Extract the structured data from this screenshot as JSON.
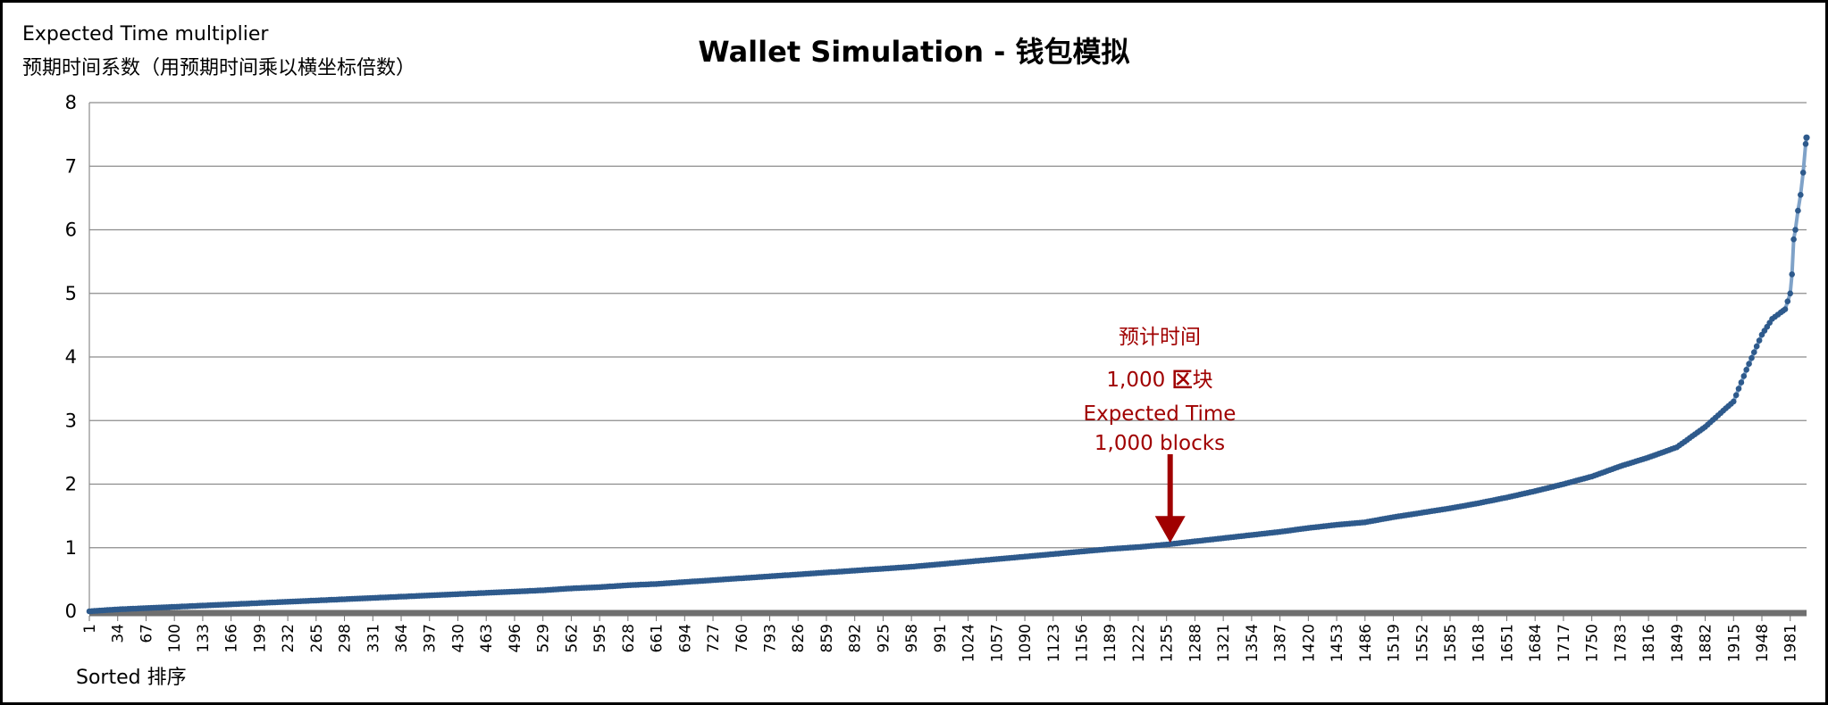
{
  "chart_data": {
    "type": "line",
    "title": "Wallet Simulation - 钱包模拟",
    "ylabel": [
      "Expected Time multiplier",
      "预期时间系数（用预期时间乘以横坐标倍数）"
    ],
    "xlabel": "Sorted 排序",
    "ylim": [
      0,
      8
    ],
    "yticks": [
      0,
      1,
      2,
      3,
      4,
      5,
      6,
      7,
      8
    ],
    "xlim": [
      1,
      2000
    ],
    "xticks": [
      1,
      34,
      67,
      100,
      133,
      166,
      199,
      232,
      265,
      298,
      331,
      364,
      397,
      430,
      463,
      496,
      529,
      562,
      595,
      628,
      661,
      694,
      727,
      760,
      793,
      826,
      859,
      892,
      925,
      958,
      991,
      1024,
      1057,
      1090,
      1123,
      1156,
      1189,
      1222,
      1255,
      1288,
      1321,
      1354,
      1387,
      1420,
      1453,
      1486,
      1519,
      1552,
      1585,
      1618,
      1651,
      1684,
      1717,
      1750,
      1783,
      1816,
      1849,
      1882,
      1915,
      1948,
      1981
    ],
    "grid": "horizontal",
    "legend": "none",
    "series": [
      {
        "color": "#2e5a8c",
        "x": [
          1,
          34,
          67,
          100,
          133,
          166,
          199,
          232,
          265,
          298,
          331,
          364,
          397,
          430,
          463,
          496,
          529,
          562,
          595,
          628,
          661,
          694,
          727,
          760,
          793,
          826,
          859,
          892,
          925,
          958,
          991,
          1024,
          1057,
          1090,
          1123,
          1156,
          1189,
          1222,
          1255,
          1288,
          1321,
          1354,
          1387,
          1420,
          1453,
          1486,
          1519,
          1552,
          1585,
          1618,
          1651,
          1684,
          1717,
          1750,
          1783,
          1816,
          1849,
          1882,
          1915,
          1930,
          1948,
          1960,
          1970,
          1975,
          1981,
          1983,
          1985,
          1987,
          1990,
          1993,
          1996,
          1999,
          2000
        ],
        "y": [
          0.0,
          0.03,
          0.05,
          0.07,
          0.09,
          0.11,
          0.13,
          0.15,
          0.17,
          0.19,
          0.21,
          0.23,
          0.25,
          0.27,
          0.29,
          0.31,
          0.33,
          0.36,
          0.38,
          0.41,
          0.43,
          0.46,
          0.49,
          0.52,
          0.55,
          0.58,
          0.61,
          0.64,
          0.67,
          0.7,
          0.74,
          0.78,
          0.82,
          0.86,
          0.9,
          0.94,
          0.98,
          1.01,
          1.05,
          1.1,
          1.15,
          1.2,
          1.25,
          1.31,
          1.36,
          1.4,
          1.48,
          1.55,
          1.62,
          1.7,
          1.79,
          1.89,
          2.0,
          2.12,
          2.28,
          2.42,
          2.58,
          2.9,
          3.3,
          3.8,
          4.35,
          4.6,
          4.7,
          4.75,
          5.0,
          5.3,
          5.85,
          6.0,
          6.3,
          6.55,
          6.9,
          7.35,
          7.45
        ]
      }
    ],
    "annotation": {
      "lines": [
        "预计时间",
        "1,000 区块",
        "Expected Time",
        "1,000 blocks"
      ],
      "target_x": 1255,
      "target_y": 1.05,
      "color": "#a00000"
    }
  }
}
